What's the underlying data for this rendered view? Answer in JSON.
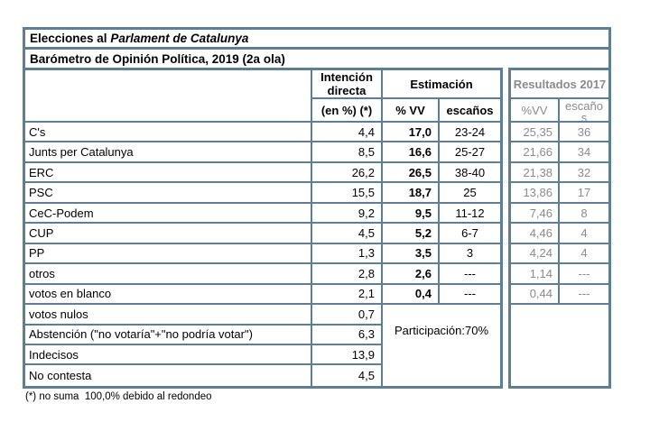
{
  "title1": {
    "prefix": "Elecciones al ",
    "italic": "Parlament de Catalunya"
  },
  "title2": "Barómetro de Opinión Política, 2019 (2a ola)",
  "headers": {
    "intencion": "Intención directa",
    "estimacion": "Estimación",
    "resultados_2017": "Resultados 2017",
    "en_pct": "(en %) (*)",
    "pct_vv": "% VV",
    "escanos": "escaños",
    "r_pct_vv": "%VV",
    "r_escanos": "escaños"
  },
  "rows": [
    {
      "name": "C's",
      "intencion": "4,4",
      "est_vv": "17,0",
      "est_esc": "23-24",
      "r_vv": "25,35",
      "r_esc": "36"
    },
    {
      "name": "Junts per Catalunya",
      "intencion": "8,5",
      "est_vv": "16,6",
      "est_esc": "25-27",
      "r_vv": "21,66",
      "r_esc": "34"
    },
    {
      "name": "ERC",
      "intencion": "26,2",
      "est_vv": "26,5",
      "est_esc": "38-40",
      "r_vv": "21,38",
      "r_esc": "32"
    },
    {
      "name": "PSC",
      "intencion": "15,5",
      "est_vv": "18,7",
      "est_esc": "25",
      "r_vv": "13,86",
      "r_esc": "17"
    },
    {
      "name": "CeC-Podem",
      "intencion": "9,2",
      "est_vv": "9,5",
      "est_esc": "11-12",
      "r_vv": "7,46",
      "r_esc": "8"
    },
    {
      "name": "CUP",
      "intencion": "4,5",
      "est_vv": "5,2",
      "est_esc": "6-7",
      "r_vv": "4,46",
      "r_esc": "4"
    },
    {
      "name": "PP",
      "intencion": "1,3",
      "est_vv": "3,5",
      "est_esc": "3",
      "r_vv": "4,24",
      "r_esc": "4"
    },
    {
      "name": "otros",
      "intencion": "2,8",
      "est_vv": "2,6",
      "est_esc": "---",
      "r_vv": "1,14",
      "r_esc": "---"
    },
    {
      "name": "votos en blanco",
      "intencion": "2,1",
      "est_vv": "0,4",
      "est_esc": "---",
      "r_vv": "0,44",
      "r_esc": "---"
    }
  ],
  "bottom_rows": [
    {
      "name": "votos nulos",
      "intencion": "0,7"
    },
    {
      "name": "Abstención (\"no votaría\"+\"no podría votar\")",
      "intencion": "6,3"
    },
    {
      "name": "Indecisos",
      "intencion": "13,9"
    },
    {
      "name": "No contesta",
      "intencion": "4,5"
    }
  ],
  "participacion": "Participación:70%",
  "footnote": "(*) no suma  100,0% debido al redondeo",
  "colors": {
    "border": "#5d7e94",
    "gray_text": "#8b8b8b"
  }
}
